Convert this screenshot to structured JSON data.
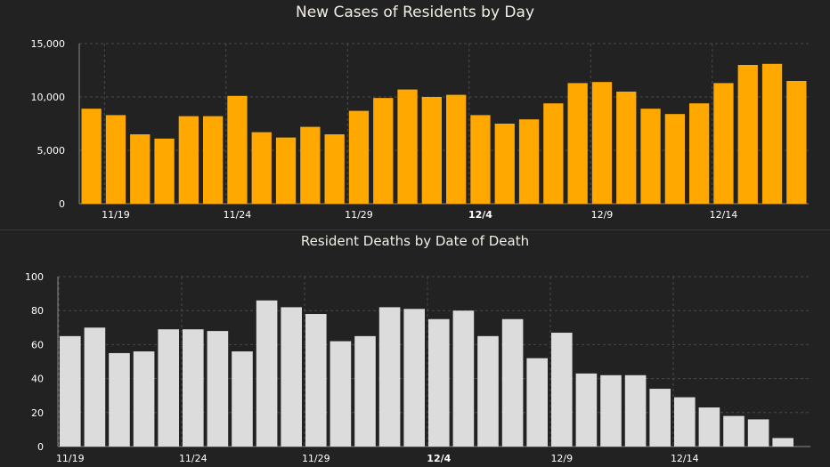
{
  "colors": {
    "background": "#222222",
    "cases_bar": "#FFA800",
    "deaths_bar": "#DCDCDC",
    "grid": "#4a4a4a",
    "axis": "#8a8a8a"
  },
  "chart_data": [
    {
      "type": "bar",
      "title": "New Cases of Residents by Day",
      "xlabel": "",
      "ylabel": "",
      "x": [
        "11/18",
        "11/19",
        "11/20",
        "11/21",
        "11/22",
        "11/23",
        "11/24",
        "11/25",
        "11/26",
        "11/27",
        "11/28",
        "11/29",
        "11/30",
        "12/1",
        "12/2",
        "12/3",
        "12/4",
        "12/5",
        "12/6",
        "12/7",
        "12/8",
        "12/9",
        "12/10",
        "12/11",
        "12/12",
        "12/13",
        "12/14",
        "12/15",
        "12/16",
        "12/17"
      ],
      "values": [
        8900,
        8300,
        6500,
        6100,
        8200,
        8200,
        10100,
        6700,
        6200,
        7200,
        6500,
        8700,
        9900,
        10700,
        10000,
        10200,
        8300,
        7500,
        7900,
        9400,
        11300,
        11400,
        10500,
        8900,
        8400,
        9400,
        11300,
        13000,
        13100,
        11500
      ],
      "x_tick_labels": [
        "11/19",
        "11/24",
        "11/29",
        "12/4",
        "12/9",
        "12/14"
      ],
      "y_ticks": [
        "0",
        "5,000",
        "10,000",
        "15,000"
      ],
      "ylim": [
        0,
        15000
      ],
      "grid": true
    },
    {
      "type": "bar",
      "title": "Resident Deaths by Date of Death",
      "xlabel": "",
      "ylabel": "",
      "x": [
        "11/19",
        "11/20",
        "11/21",
        "11/22",
        "11/23",
        "11/24",
        "11/25",
        "11/26",
        "11/27",
        "11/28",
        "11/29",
        "11/30",
        "12/1",
        "12/2",
        "12/3",
        "12/4",
        "12/5",
        "12/6",
        "12/7",
        "12/8",
        "12/9",
        "12/10",
        "12/11",
        "12/12",
        "12/13",
        "12/14",
        "12/15",
        "12/16",
        "12/17",
        "12/18"
      ],
      "values": [
        65,
        70,
        55,
        56,
        69,
        69,
        68,
        56,
        86,
        82,
        78,
        62,
        65,
        82,
        81,
        75,
        80,
        65,
        75,
        52,
        67,
        43,
        42,
        42,
        34,
        29,
        23,
        18,
        16,
        5
      ],
      "x_tick_labels": [
        "11/19",
        "11/24",
        "11/29",
        "12/4",
        "12/9",
        "12/14"
      ],
      "y_ticks": [
        "0",
        "20",
        "40",
        "60",
        "80",
        "100"
      ],
      "ylim": [
        0,
        100
      ],
      "grid": true
    }
  ]
}
